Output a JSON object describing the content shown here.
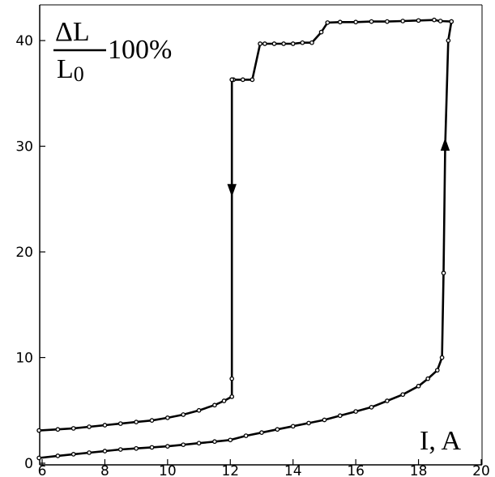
{
  "chart_data": {
    "type": "line",
    "title": "",
    "xlabel": "I, A",
    "ylabel": {
      "numerator": "ΔL",
      "denominator_main": "L",
      "denominator_sub": "0",
      "suffix": "100%"
    },
    "xlim": [
      6,
      20
    ],
    "ylim": [
      0,
      42
    ],
    "x_ticks": [
      6,
      8,
      10,
      12,
      14,
      16,
      18,
      20
    ],
    "y_ticks": [
      0,
      10,
      20,
      30,
      40
    ],
    "grid": false,
    "line_color": "#000000",
    "series": [
      {
        "direction": "increasing current",
        "x": [
          5.9,
          6.5,
          7.0,
          7.5,
          8.0,
          8.5,
          9.0,
          9.5,
          10.0,
          10.5,
          11.0,
          11.5,
          12.0,
          12.5,
          13.0,
          13.5,
          14.0,
          14.5,
          15.0,
          15.5,
          16.0,
          16.5,
          17.0,
          17.5,
          18.0,
          18.3,
          18.6,
          18.75,
          18.8,
          18.85,
          18.95,
          19.05
        ],
        "y": [
          0.5,
          0.7,
          0.85,
          1.0,
          1.15,
          1.3,
          1.4,
          1.5,
          1.6,
          1.75,
          1.9,
          2.05,
          2.2,
          2.6,
          2.9,
          3.2,
          3.5,
          3.8,
          4.1,
          4.5,
          4.9,
          5.3,
          5.9,
          6.5,
          7.3,
          8.0,
          8.8,
          10.0,
          18.0,
          30.0,
          40.0,
          41.8
        ],
        "marker": {
          "x": 18.85,
          "y": 30,
          "symbol": "arrow-up"
        }
      },
      {
        "direction": "decreasing current",
        "x": [
          19.05,
          18.7,
          18.5,
          18.0,
          17.5,
          17.0,
          16.5,
          16.0,
          15.5,
          15.1,
          14.9,
          14.6,
          14.3,
          14.0,
          13.7,
          13.4,
          13.1,
          12.95,
          12.7,
          12.4,
          12.1,
          12.05,
          12.05,
          12.05,
          12.05,
          11.8,
          11.5,
          11.0,
          10.5,
          10.0,
          9.5,
          9.0,
          8.5,
          8.0,
          7.5,
          7.0,
          6.5,
          5.9
        ],
        "y": [
          41.8,
          41.85,
          41.95,
          41.9,
          41.85,
          41.8,
          41.8,
          41.75,
          41.75,
          41.7,
          40.8,
          39.8,
          39.8,
          39.7,
          39.7,
          39.7,
          39.7,
          39.7,
          36.3,
          36.3,
          36.3,
          36.3,
          26.0,
          8.0,
          6.3,
          5.9,
          5.5,
          5.0,
          4.6,
          4.3,
          4.05,
          3.9,
          3.75,
          3.6,
          3.45,
          3.3,
          3.2,
          3.1
        ],
        "marker": {
          "x": 12.05,
          "y": 26,
          "symbol": "arrow-down"
        }
      }
    ]
  }
}
